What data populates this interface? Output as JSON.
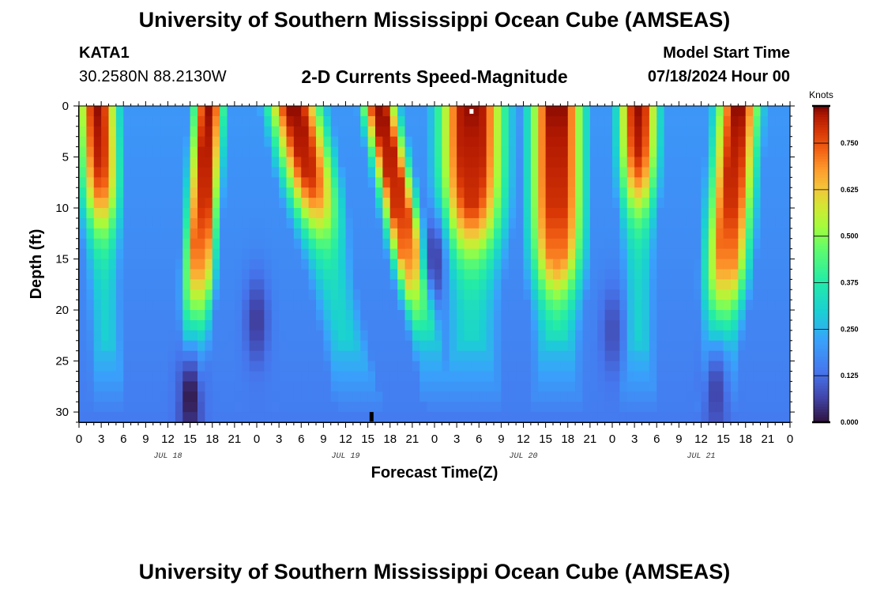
{
  "header": {
    "title": "University of Southern Mississippi Ocean Cube (AMSEAS)",
    "station": "KATA1",
    "coordinates": "30.2580N  88.2130W",
    "variable": "2-D Currents Speed-Magnitude",
    "model_start_label": "Model Start Time",
    "model_start_value": "07/18/2024 Hour 00"
  },
  "footer": {
    "title": "University of Southern Mississippi Ocean Cube (AMSEAS)"
  },
  "colors": {
    "background": "#ffffff",
    "marker_top": "#ffffff",
    "marker_bottom": "#000000"
  },
  "chart_data": {
    "type": "heatmap",
    "xlabel": "Forecast Time(Z)",
    "ylabel": "Depth (ft)",
    "xlim": [
      0,
      96
    ],
    "ylim": [
      0,
      31
    ],
    "x_ticks": [
      0,
      3,
      6,
      9,
      12,
      15,
      18,
      21,
      24,
      27,
      30,
      33,
      36,
      39,
      42,
      45,
      48,
      51,
      54,
      57,
      60,
      63,
      66,
      69,
      72,
      75,
      78,
      81,
      84,
      87,
      90,
      93,
      96
    ],
    "x_tick_labels": [
      "0",
      "3",
      "6",
      "9",
      "12",
      "15",
      "18",
      "21",
      "0",
      "3",
      "6",
      "9",
      "12",
      "15",
      "18",
      "21",
      "0",
      "3",
      "6",
      "9",
      "12",
      "15",
      "18",
      "21",
      "0",
      "3",
      "6",
      "9",
      "12",
      "15",
      "18",
      "21",
      "0"
    ],
    "date_labels": [
      {
        "label": "JUL 18",
        "hour": 12
      },
      {
        "label": "JUL 19",
        "hour": 36
      },
      {
        "label": "JUL 20",
        "hour": 60
      },
      {
        "label": "JUL 21",
        "hour": 84
      }
    ],
    "y_ticks": [
      0,
      5,
      10,
      15,
      20,
      25,
      30
    ],
    "y_tick_labels": [
      "0",
      "5",
      "10",
      "15",
      "20",
      "25",
      "30"
    ],
    "colorbar": {
      "unit": "Knots",
      "min": 0.0,
      "max": 0.85,
      "ticks": [
        0.0,
        0.125,
        0.25,
        0.375,
        0.5,
        0.625,
        0.75
      ],
      "tick_labels": [
        "0.000",
        "0.125",
        "0.250",
        "0.375",
        "0.500",
        "0.625",
        "0.750"
      ]
    },
    "depth_profile": [
      {
        "depth": 0,
        "max_speed": 0.84
      },
      {
        "depth": 10,
        "max_speed": 0.79
      },
      {
        "depth": 16,
        "max_speed": 0.68
      },
      {
        "depth": 20,
        "max_speed": 0.48
      },
      {
        "depth": 24,
        "max_speed": 0.26
      },
      {
        "depth": 28,
        "max_speed": 0.19
      },
      {
        "depth": 31,
        "max_speed": 0.14
      }
    ],
    "tidal_cycles": [
      {
        "peak_hour": 2.5,
        "width": 3.0,
        "amplitude": 0.86,
        "depth_reach": 11,
        "tilt": 0.05
      },
      {
        "peak_hour": 17.5,
        "width": 2.3,
        "amplitude": 0.88,
        "depth_reach": 20,
        "tilt": -0.08
      },
      {
        "peak_hour": 29,
        "width": 4.0,
        "amplitude": 0.88,
        "depth_reach": 11,
        "tilt": 0.3
      },
      {
        "peak_hour": 40.5,
        "width": 2.6,
        "amplitude": 0.9,
        "depth_reach": 19,
        "tilt": 0.28
      },
      {
        "peak_hour": 53,
        "width": 5.0,
        "amplitude": 0.9,
        "depth_reach": 13,
        "tilt": 0.0
      },
      {
        "peak_hour": 64.5,
        "width": 4.0,
        "amplitude": 0.9,
        "depth_reach": 17,
        "tilt": 0.0
      },
      {
        "peak_hour": 75.5,
        "width": 3.0,
        "amplitude": 0.88,
        "depth_reach": 9,
        "tilt": 0.0
      },
      {
        "peak_hour": 89.0,
        "width": 3.3,
        "amplitude": 0.86,
        "depth_reach": 19,
        "tilt": -0.1
      }
    ],
    "slack_minima": [
      {
        "hour": 15,
        "depth": 28.5,
        "speed": 0.0
      },
      {
        "hour": 24,
        "depth": 21,
        "speed": 0.05
      },
      {
        "hour": 48,
        "depth": 15,
        "speed": 0.06
      },
      {
        "hour": 72,
        "depth": 22,
        "speed": 0.08
      },
      {
        "hour": 86,
        "depth": 28,
        "speed": 0.06
      }
    ],
    "markers": [
      {
        "hour": 53,
        "depth": 0.3,
        "color": "#ffffff"
      },
      {
        "hour": 39.5,
        "depth": 30,
        "color": "#000000"
      }
    ]
  }
}
